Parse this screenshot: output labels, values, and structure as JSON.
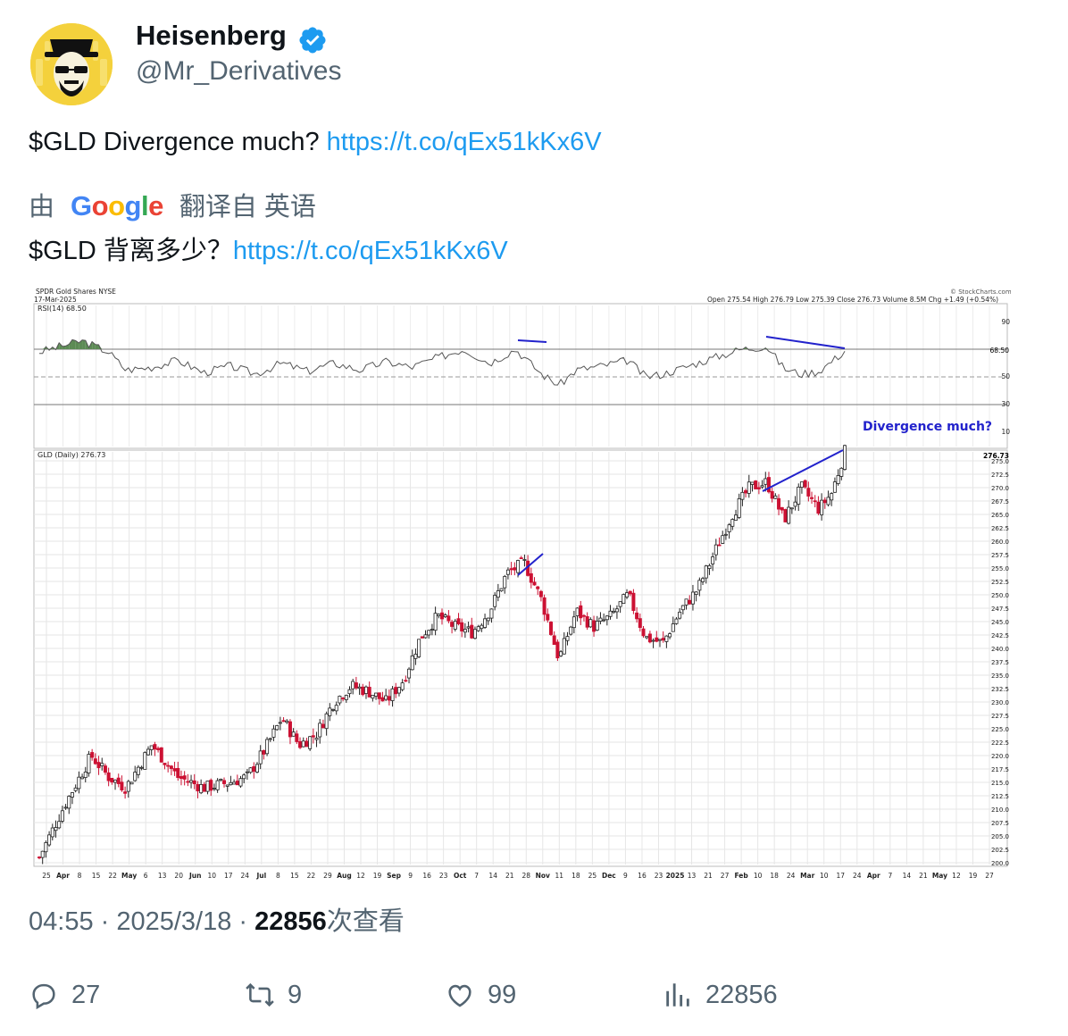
{
  "author": {
    "name": "Heisenberg",
    "handle": "@Mr_Derivatives",
    "verified": true,
    "avatar_icon": "heisenberg-avatar"
  },
  "tweet": {
    "text": "$GLD Divergence much? ",
    "link": "https://t.co/qEx51kKx6V"
  },
  "translation": {
    "prefix": "由",
    "provider": "Google",
    "suffix": "翻译自 英语",
    "text": "$GLD 背离多少？",
    "link": "https://t.co/qEx51kKx6V"
  },
  "meta": {
    "time": "04:55",
    "sep1": " · ",
    "date": "2025/3/18",
    "sep2": " · ",
    "views": "22856",
    "views_label": "次查看"
  },
  "actions": {
    "replies": "27",
    "retweets": "9",
    "likes": "99",
    "views": "22856"
  },
  "colors": {
    "link": "#1d9bf0",
    "secondary": "#536471",
    "annotation": "#2222cc",
    "up_candle": "#ffffff",
    "down_candle": "#cc1133",
    "rsi_fill": "#5c8a54"
  },
  "chart_data": {
    "type": "candlestick",
    "header_left": "SPDR Gold Shares NYSE",
    "header_date": "17-Mar-2025",
    "header_stats": "Open 275.54  High 276.79  Low 275.39  Close 276.73  Volume 8.5M  Chg +1.49 (+0.54%)",
    "watermark": "© StockCharts.com",
    "rsi_label": "RSI(14) 68.50",
    "rsi_value_badge": "68.50",
    "rsi_ticks": [
      "90",
      "50",
      "30",
      "10"
    ],
    "price_label": "GLD (Daily) 276.73",
    "price_badge": "276.73",
    "annotation": "Divergence much?",
    "ylim": [
      200.0,
      276.73
    ],
    "price_ticks": [
      "275.0",
      "272.5",
      "270.0",
      "267.5",
      "265.0",
      "262.5",
      "260.0",
      "257.5",
      "255.0",
      "252.5",
      "250.0",
      "247.5",
      "245.0",
      "242.5",
      "240.0",
      "237.5",
      "235.0",
      "232.5",
      "230.0",
      "227.5",
      "225.0",
      "222.5",
      "220.0",
      "217.5",
      "215.0",
      "212.5",
      "210.0",
      "207.5",
      "205.0",
      "202.5",
      "200.0"
    ],
    "x_ticks": [
      "25",
      "Apr",
      "8",
      "15",
      "22",
      "May",
      "6",
      "13",
      "20",
      "Jun",
      "10",
      "17",
      "24",
      "Jul",
      "8",
      "15",
      "22",
      "29",
      "Aug",
      "12",
      "19",
      "Sep",
      "9",
      "16",
      "23",
      "Oct",
      "7",
      "14",
      "21",
      "28",
      "Nov",
      "11",
      "18",
      "25",
      "Dec",
      "9",
      "16",
      "23",
      "2025",
      "13",
      "21",
      "27",
      "Feb",
      "10",
      "18",
      "24",
      "Mar",
      "10",
      "17",
      "24",
      "Apr",
      "7",
      "14",
      "21",
      "May",
      "12",
      "19",
      "27"
    ],
    "price_path": [
      [
        0,
        201
      ],
      [
        0.03,
        211
      ],
      [
        0.06,
        220
      ],
      [
        0.08,
        216
      ],
      [
        0.1,
        214
      ],
      [
        0.13,
        222
      ],
      [
        0.16,
        216
      ],
      [
        0.19,
        214
      ],
      [
        0.22,
        215
      ],
      [
        0.24,
        216
      ],
      [
        0.26,
        221
      ],
      [
        0.28,
        227
      ],
      [
        0.3,
        222
      ],
      [
        0.32,
        224
      ],
      [
        0.34,
        230
      ],
      [
        0.36,
        233
      ],
      [
        0.38,
        232
      ],
      [
        0.4,
        230
      ],
      [
        0.42,
        234
      ],
      [
        0.44,
        242
      ],
      [
        0.46,
        246
      ],
      [
        0.48,
        244
      ],
      [
        0.5,
        243
      ],
      [
        0.52,
        247
      ],
      [
        0.54,
        254
      ],
      [
        0.56,
        256
      ],
      [
        0.58,
        249
      ],
      [
        0.6,
        238
      ],
      [
        0.62,
        247
      ],
      [
        0.64,
        244
      ],
      [
        0.66,
        246
      ],
      [
        0.68,
        250
      ],
      [
        0.7,
        242
      ],
      [
        0.72,
        241
      ],
      [
        0.74,
        247
      ],
      [
        0.76,
        251
      ],
      [
        0.78,
        258
      ],
      [
        0.8,
        265
      ],
      [
        0.82,
        270
      ],
      [
        0.84,
        271
      ],
      [
        0.86,
        264
      ],
      [
        0.88,
        270
      ],
      [
        0.9,
        266
      ],
      [
        0.915,
        269
      ],
      [
        0.93,
        276.73
      ]
    ],
    "rsi_path": [
      [
        0,
        68
      ],
      [
        0.03,
        73
      ],
      [
        0.05,
        76
      ],
      [
        0.08,
        68
      ],
      [
        0.1,
        55
      ],
      [
        0.13,
        57
      ],
      [
        0.16,
        62
      ],
      [
        0.19,
        53
      ],
      [
        0.22,
        58
      ],
      [
        0.25,
        52
      ],
      [
        0.28,
        60
      ],
      [
        0.31,
        54
      ],
      [
        0.34,
        60
      ],
      [
        0.37,
        55
      ],
      [
        0.4,
        61
      ],
      [
        0.43,
        57
      ],
      [
        0.46,
        64
      ],
      [
        0.49,
        70
      ],
      [
        0.52,
        60
      ],
      [
        0.55,
        70
      ],
      [
        0.58,
        52
      ],
      [
        0.6,
        44
      ],
      [
        0.62,
        55
      ],
      [
        0.65,
        58
      ],
      [
        0.68,
        62
      ],
      [
        0.7,
        50
      ],
      [
        0.72,
        52
      ],
      [
        0.75,
        58
      ],
      [
        0.78,
        64
      ],
      [
        0.81,
        70
      ],
      [
        0.84,
        72
      ],
      [
        0.86,
        56
      ],
      [
        0.88,
        52
      ],
      [
        0.9,
        54
      ],
      [
        0.93,
        68.5
      ]
    ]
  }
}
